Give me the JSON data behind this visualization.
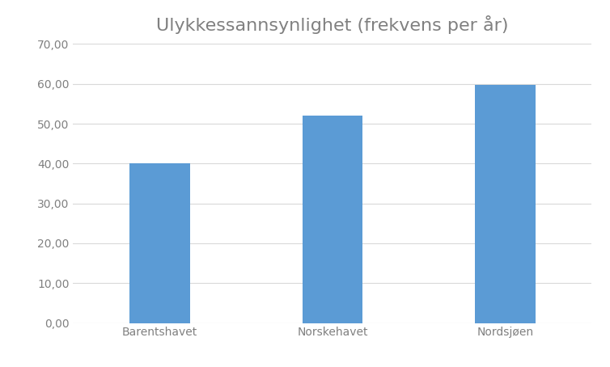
{
  "title": "Ulykkessannsynlighet (frekvens per år)",
  "categories": [
    "Barentshavet",
    "Norskehavet",
    "Nordsjøen"
  ],
  "values": [
    40.0,
    52.0,
    59.7
  ],
  "bar_color": "#5B9BD5",
  "ylim": [
    0,
    70
  ],
  "yticks": [
    0,
    10,
    20,
    30,
    40,
    50,
    60,
    70
  ],
  "ytick_labels": [
    "0,00",
    "10,00",
    "20,00",
    "30,00",
    "40,00",
    "50,00",
    "60,00",
    "70,00"
  ],
  "background_color": "#ffffff",
  "title_fontsize": 16,
  "tick_fontsize": 10,
  "title_color": "#808080",
  "tick_color": "#808080",
  "grid_color": "#d9d9d9",
  "bar_width": 0.35
}
